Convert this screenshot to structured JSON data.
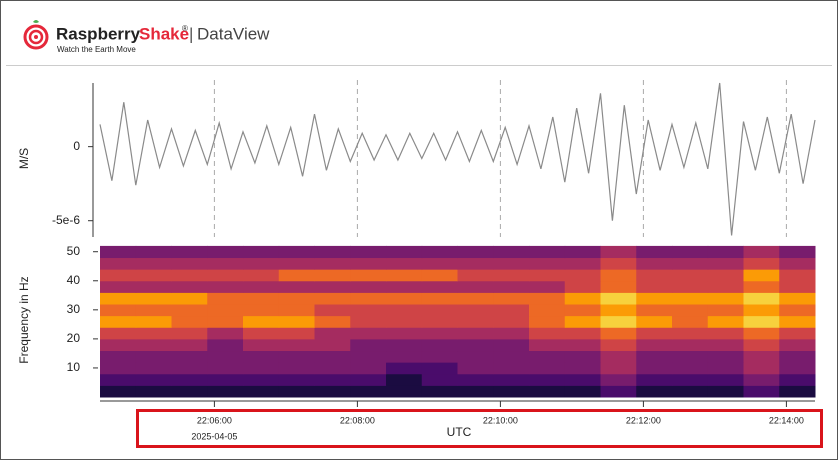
{
  "header": {
    "brand_1": "Raspberry",
    "brand_2": "Shake",
    "registered": "®",
    "separator": "|",
    "app": "DataView",
    "tagline": "Watch the Earth Move"
  },
  "chart_data": [
    {
      "type": "line",
      "ylabel": "M/S",
      "color": "#8a8a8a",
      "grid_x": true,
      "xlim": [
        79464,
        80064
      ],
      "ylim": [
        -6.1e-06,
        4.5e-06
      ],
      "yticks": [
        0,
        {
          "value": -5e-06,
          "label": "-5e-6"
        }
      ],
      "x": [
        79464,
        79474,
        79484,
        79494,
        79504,
        79514,
        79524,
        79534,
        79544,
        79554,
        79564,
        79574,
        79584,
        79594,
        79604,
        79614,
        79624,
        79634,
        79644,
        79654,
        79664,
        79674,
        79684,
        79694,
        79704,
        79714,
        79724,
        79734,
        79744,
        79754,
        79764,
        79774,
        79784,
        79794,
        79804,
        79814,
        79824,
        79834,
        79844,
        79854,
        79864,
        79874,
        79884,
        79894,
        79904,
        79914,
        79924,
        79934,
        79944,
        79954,
        79964,
        79974,
        79984,
        79994,
        80004,
        80014,
        80024,
        80034,
        80044,
        80054,
        80064
      ],
      "values": [
        1.5e-06,
        -2.3e-06,
        3e-06,
        -2.6e-06,
        1.8e-06,
        -1.4e-06,
        1.2e-06,
        -1.3e-06,
        1.1e-06,
        -1.2e-06,
        1.6e-06,
        -1.5e-06,
        1e-06,
        -1.1e-06,
        1.4e-06,
        -1.2e-06,
        1.3e-06,
        -2e-06,
        2.2e-06,
        -1.6e-06,
        1.2e-06,
        -1e-06,
        9e-07,
        -9e-07,
        8e-07,
        -9e-07,
        9e-07,
        -8e-07,
        9e-07,
        -9e-07,
        1e-06,
        -1e-06,
        1.1e-06,
        -1e-06,
        1.3e-06,
        -1.2e-06,
        1.4e-06,
        -1.5e-06,
        2e-06,
        -2.4e-06,
        2.6e-06,
        -1.8e-06,
        3.6e-06,
        -5e-06,
        2.8e-06,
        -3.2e-06,
        1.8e-06,
        -1.6e-06,
        1.5e-06,
        -1.4e-06,
        1.6e-06,
        -1.5e-06,
        4.3e-06,
        -6e-06,
        1.7e-06,
        -1.6e-06,
        2e-06,
        -1.8e-06,
        2.2e-06,
        -2.5e-06,
        1.8e-06
      ]
    },
    {
      "type": "heatmap",
      "ylabel": "Frequency in Hz",
      "xlabel": "UTC",
      "x_date_label": "2025-04-05",
      "colormap": "inferno",
      "xlim": [
        79464,
        80064
      ],
      "ylim": [
        0,
        53
      ],
      "xticks": [
        {
          "value": 79560,
          "label": "22:06:00"
        },
        {
          "value": 79680,
          "label": "22:08:00"
        },
        {
          "value": 79800,
          "label": "22:10:00"
        },
        {
          "value": 79920,
          "label": "22:12:00"
        },
        {
          "value": 80040,
          "label": "22:14:00"
        }
      ],
      "yticks": [
        10,
        20,
        30,
        40,
        50
      ],
      "x": [
        79464,
        79494,
        79524,
        79554,
        79584,
        79614,
        79644,
        79674,
        79704,
        79734,
        79764,
        79794,
        79824,
        79854,
        79884,
        79914,
        79944,
        79974,
        80004,
        80034,
        80064
      ],
      "y": [
        0,
        4,
        8,
        12,
        16,
        20,
        24,
        28,
        32,
        36,
        40,
        44,
        48,
        52
      ],
      "z": [
        [
          1,
          1,
          1,
          1,
          1,
          1,
          1,
          1,
          1,
          1,
          1,
          1,
          1,
          1,
          2,
          1,
          1,
          1,
          2,
          1
        ],
        [
          2,
          2,
          2,
          2,
          2,
          2,
          2,
          2,
          1,
          2,
          2,
          2,
          2,
          2,
          3,
          2,
          2,
          2,
          3,
          2
        ],
        [
          3,
          3,
          3,
          3,
          3,
          3,
          3,
          3,
          2,
          2,
          3,
          3,
          3,
          3,
          4,
          3,
          3,
          3,
          4,
          3
        ],
        [
          3,
          3,
          3,
          3,
          3,
          3,
          3,
          3,
          3,
          3,
          3,
          3,
          3,
          3,
          4,
          3,
          3,
          3,
          4,
          3
        ],
        [
          4,
          4,
          4,
          3,
          4,
          4,
          4,
          3,
          3,
          3,
          3,
          3,
          4,
          4,
          5,
          4,
          4,
          4,
          5,
          4
        ],
        [
          5,
          5,
          5,
          4,
          5,
          5,
          4,
          4,
          4,
          4,
          4,
          4,
          5,
          5,
          6,
          5,
          5,
          5,
          6,
          5
        ],
        [
          7,
          7,
          6,
          6,
          7,
          7,
          6,
          5,
          5,
          5,
          5,
          5,
          6,
          7,
          8,
          7,
          6,
          7,
          8,
          7
        ],
        [
          6,
          6,
          6,
          6,
          6,
          6,
          5,
          5,
          5,
          5,
          5,
          5,
          6,
          6,
          7,
          6,
          6,
          6,
          7,
          6
        ],
        [
          7,
          7,
          7,
          6,
          6,
          6,
          6,
          6,
          6,
          6,
          6,
          6,
          6,
          7,
          8,
          7,
          7,
          7,
          8,
          7
        ],
        [
          4,
          4,
          4,
          4,
          4,
          4,
          4,
          4,
          4,
          4,
          4,
          4,
          4,
          5,
          6,
          5,
          5,
          5,
          6,
          5
        ],
        [
          5,
          5,
          5,
          5,
          5,
          6,
          6,
          6,
          6,
          6,
          5,
          5,
          5,
          5,
          6,
          5,
          5,
          5,
          7,
          5
        ],
        [
          4,
          4,
          4,
          4,
          4,
          4,
          4,
          4,
          4,
          4,
          4,
          4,
          4,
          4,
          5,
          4,
          4,
          4,
          5,
          4
        ],
        [
          3,
          3,
          3,
          3,
          3,
          3,
          3,
          3,
          3,
          3,
          3,
          3,
          3,
          3,
          4,
          3,
          3,
          3,
          4,
          3
        ]
      ]
    }
  ]
}
